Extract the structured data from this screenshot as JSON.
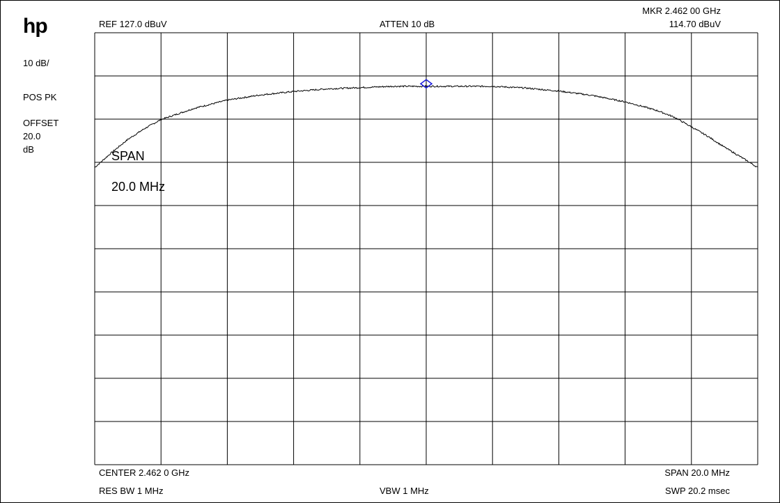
{
  "instrument": {
    "logo": "hp"
  },
  "left_panel": {
    "scale": "10 dB/",
    "detector": "POS PK",
    "offset_label": "OFFSET",
    "offset_value": "20.0",
    "offset_unit": "dB"
  },
  "header": {
    "ref": "REF  127.0 dBuV",
    "atten": "ATTEN 10 dB",
    "marker_freq": "MKR 2.462 00 GHz",
    "marker_level": "114.70 dBuV"
  },
  "footer": {
    "center": "CENTER 2.462 0 GHz",
    "span": "SPAN 20.0 MHz",
    "res_bw": "RES BW 1 MHz",
    "vbw": "VBW 1 MHz",
    "sweep": "SWP 20.2 msec"
  },
  "annotation": {
    "span_title": "SPAN",
    "span_value": "20.0 MHz"
  },
  "colors": {
    "trace": "#000000",
    "grid": "#000000",
    "marker": "#1a1adc"
  },
  "chart_data": {
    "type": "line",
    "title": "",
    "xlabel": "",
    "ylabel": "",
    "x_unit": "MHz",
    "y_unit": "dBuV",
    "xlim": [
      2452.0,
      2472.0
    ],
    "ylim": [
      27.0,
      127.0
    ],
    "x_divisions": 10,
    "y_divisions": 10,
    "grid": true,
    "marker": {
      "x": 2462.0,
      "y": 114.7
    },
    "series": [
      {
        "x": [
          2452.0,
          2452.5,
          2453.0,
          2453.5,
          2454.0,
          2455.0,
          2456.0,
          2457.0,
          2458.0,
          2459.0,
          2460.0,
          2461.0,
          2462.0,
          2463.0,
          2464.0,
          2465.0,
          2466.0,
          2467.0,
          2468.0,
          2468.5,
          2469.0,
          2469.5,
          2470.0,
          2470.5,
          2471.0,
          2471.5,
          2472.0
        ],
        "y": [
          95.8,
          99.2,
          102.3,
          104.8,
          106.9,
          109.5,
          111.4,
          112.6,
          113.4,
          114.0,
          114.3,
          114.6,
          114.6,
          114.6,
          114.6,
          114.2,
          113.5,
          112.5,
          111.0,
          110.0,
          108.9,
          107.4,
          105.2,
          103.0,
          100.5,
          98.2,
          95.8
        ]
      }
    ]
  }
}
